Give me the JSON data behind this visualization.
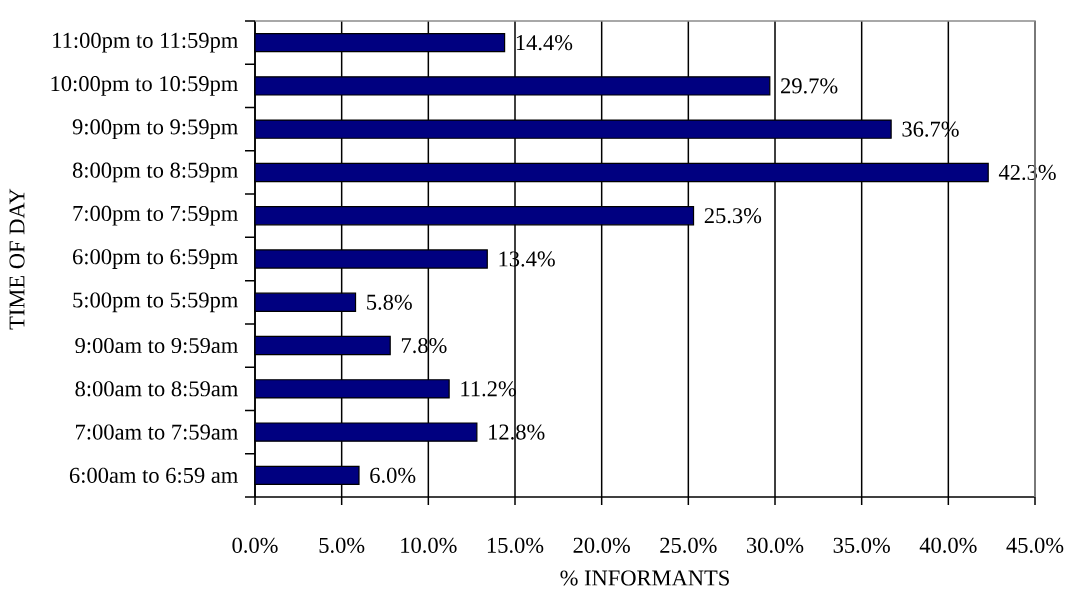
{
  "chart_data": {
    "type": "bar",
    "orientation": "horizontal",
    "xlabel": "% INFORMANTS",
    "ylabel": "TIME OF DAY",
    "categories": [
      "11:00pm to 11:59pm",
      "10:00pm to 10:59pm",
      "9:00pm to 9:59pm",
      "8:00pm to 8:59pm",
      "7:00pm to 7:59pm",
      "6:00pm to 6:59pm",
      "5:00pm to 5:59pm",
      "9:00am to 9:59am",
      "8:00am to 8:59am",
      "7:00am to 7:59am",
      "6:00am to 6:59 am"
    ],
    "values": [
      14.4,
      29.7,
      36.7,
      42.3,
      25.3,
      13.4,
      5.8,
      7.8,
      11.2,
      12.8,
      6.0
    ],
    "value_labels": [
      "14.4%",
      "29.7%",
      "36.7%",
      "42.3%",
      "25.3%",
      "13.4%",
      "5.8%",
      "7.8%",
      "11.2%",
      "12.8%",
      "6.0%"
    ],
    "color": "#000080",
    "xlim": [
      0,
      45
    ],
    "xticks": [
      {
        "value": 0,
        "label": "0.0%"
      },
      {
        "value": 5,
        "label": "5.0%"
      },
      {
        "value": 10,
        "label": "10.0%"
      },
      {
        "value": 15,
        "label": "15.0%"
      },
      {
        "value": 20,
        "label": "20.0%"
      },
      {
        "value": 25,
        "label": "25.0%"
      },
      {
        "value": 30,
        "label": "30.0%"
      },
      {
        "value": 35,
        "label": "35.0%"
      },
      {
        "value": 40,
        "label": "40.0%"
      },
      {
        "value": 45,
        "label": "45.0%"
      }
    ],
    "grid": "x"
  }
}
